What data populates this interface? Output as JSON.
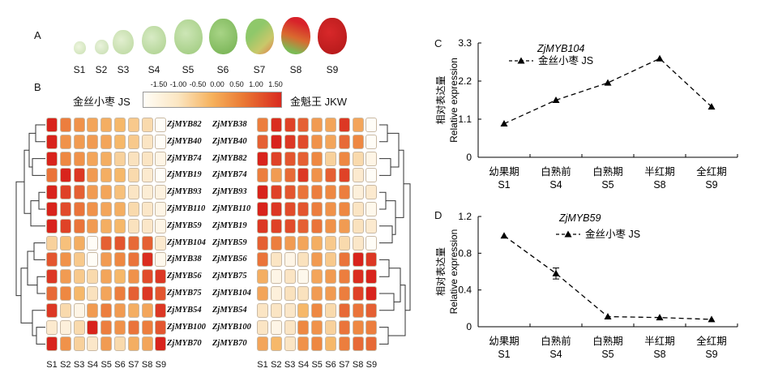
{
  "panel_a": {
    "label": "A",
    "stages": [
      "S1",
      "S2",
      "S3",
      "S4",
      "S5",
      "S6",
      "S7",
      "S8",
      "S9"
    ]
  },
  "panel_b": {
    "label": "B",
    "left_cultivar": "金丝小枣 JS",
    "right_cultivar": "金魁王 JKW",
    "scale_ticks": [
      "-1.50",
      "-1.00",
      "-0.50",
      "0.00",
      "0.50",
      "1.00",
      "1.50"
    ],
    "left_genes": [
      "ZjMYB82",
      "ZjMYB40",
      "ZjMYB74",
      "ZjMYB19",
      "ZjMYB93",
      "ZjMYB110",
      "ZjMYB59",
      "ZjMYB104",
      "ZjMYB38",
      "ZjMYB56",
      "ZjMYB75",
      "ZjMYB54",
      "ZjMYB100",
      "ZjMYB70"
    ],
    "right_genes": [
      "ZjMYB38",
      "ZjMYB40",
      "ZjMYB82",
      "ZjMYB74",
      "ZjMYB93",
      "ZjMYB110",
      "ZjMYB19",
      "ZjMYB59",
      "ZjMYB56",
      "ZjMYB75",
      "ZjMYB104",
      "ZjMYB54",
      "ZjMYB100",
      "ZjMYB70"
    ],
    "x_labels": [
      "S1",
      "S2",
      "S3",
      "S4",
      "S5",
      "S6",
      "S7",
      "S8",
      "S9"
    ],
    "left_matrix": [
      [
        1.5,
        0.6,
        0.4,
        0.2,
        0.1,
        0.0,
        -0.2,
        -0.4,
        -1.5
      ],
      [
        1.5,
        0.4,
        0.3,
        0.3,
        0.2,
        0.0,
        -0.2,
        -0.6,
        -1.5
      ],
      [
        1.5,
        0.5,
        0.4,
        0.2,
        0.1,
        -0.3,
        -0.5,
        -0.6,
        -1.2
      ],
      [
        0.7,
        1.5,
        1.3,
        0.3,
        0.1,
        0.0,
        -0.4,
        -0.8,
        -1.5
      ],
      [
        1.5,
        1.2,
        0.9,
        0.3,
        0.2,
        -0.1,
        -0.6,
        -0.9,
        -1.1
      ],
      [
        1.5,
        1.1,
        0.7,
        0.4,
        0.2,
        0.1,
        -0.4,
        -0.7,
        -1.2
      ],
      [
        1.5,
        1.2,
        0.7,
        0.3,
        0.1,
        0.0,
        -0.5,
        -0.7,
        -1.2
      ],
      [
        -0.3,
        -0.1,
        0.1,
        -1.5,
        0.9,
        1.0,
        0.8,
        0.9,
        -0.8
      ],
      [
        1.0,
        0.4,
        -0.2,
        -1.5,
        0.3,
        0.5,
        0.7,
        1.4,
        -1.3
      ],
      [
        1.3,
        0.3,
        -0.2,
        -0.4,
        0.2,
        0.0,
        0.4,
        1.1,
        1.3
      ],
      [
        0.8,
        0.5,
        0.0,
        -0.5,
        0.2,
        0.6,
        0.9,
        1.3,
        1.0
      ],
      [
        1.3,
        -0.4,
        -1.2,
        0.3,
        0.6,
        0.3,
        0.1,
        0.2,
        1.3
      ],
      [
        -0.8,
        -1.0,
        -0.4,
        1.5,
        0.6,
        0.4,
        0.7,
        0.6,
        1.0
      ],
      [
        1.5,
        0.4,
        -0.3,
        -0.7,
        0.3,
        -0.4,
        0.1,
        0.2,
        1.5
      ]
    ],
    "right_matrix": [
      [
        0.6,
        1.4,
        1.2,
        0.9,
        0.3,
        0.2,
        1.3,
        0.2,
        -1.5
      ],
      [
        0.9,
        1.5,
        1.3,
        1.1,
        0.4,
        0.2,
        0.8,
        0.5,
        -1.5
      ],
      [
        1.5,
        1.2,
        1.0,
        0.9,
        0.5,
        -0.3,
        0.5,
        -0.4,
        -1.2
      ],
      [
        0.6,
        0.3,
        0.8,
        1.3,
        0.4,
        0.9,
        1.2,
        -0.8,
        -1.5
      ],
      [
        1.5,
        1.2,
        1.0,
        0.7,
        0.6,
        0.5,
        0.6,
        -1.0,
        -0.8
      ],
      [
        1.5,
        1.3,
        1.1,
        1.0,
        0.6,
        0.4,
        0.5,
        -0.6,
        -1.3
      ],
      [
        1.3,
        1.2,
        1.1,
        0.9,
        0.7,
        0.4,
        0.3,
        -0.5,
        -0.8
      ],
      [
        0.9,
        0.6,
        0.3,
        0.2,
        0.1,
        -0.2,
        -0.4,
        -0.7,
        -1.5
      ],
      [
        0.7,
        -0.6,
        -1.2,
        -0.5,
        0.3,
        -0.2,
        0.7,
        1.5,
        1.3
      ],
      [
        0.1,
        -1.2,
        -0.6,
        -1.3,
        0.2,
        0.3,
        0.6,
        1.4,
        1.5
      ],
      [
        0.2,
        -1.0,
        -0.5,
        -0.5,
        0.3,
        0.3,
        0.6,
        1.2,
        1.5
      ],
      [
        -0.6,
        -0.6,
        -0.7,
        0.0,
        0.5,
        -0.4,
        0.8,
        0.7,
        0.9
      ],
      [
        -0.6,
        -1.2,
        -0.6,
        0.5,
        0.4,
        -0.3,
        0.7,
        0.5,
        0.6
      ],
      [
        0.2,
        0.0,
        -0.6,
        0.4,
        0.5,
        0.0,
        0.6,
        0.8,
        0.8
      ]
    ]
  },
  "chart_data": [
    {
      "type": "line",
      "panel": "C",
      "title": "ZjMYB104",
      "ylabel": "相对表达量 Relative expression",
      "categories": [
        "幼果期 S1",
        "白熟前 S4",
        "白熟期 S5",
        "半红期 S8",
        "全红期 S9"
      ],
      "ylim": [
        0,
        3.3
      ],
      "yticks": [
        "0",
        "1.1",
        "2.2",
        "3.3"
      ],
      "series": [
        {
          "name": "金丝小枣 JS",
          "values": [
            0.97,
            1.65,
            2.15,
            2.85,
            1.46
          ]
        }
      ]
    },
    {
      "type": "line",
      "panel": "D",
      "title": "ZjMYB59",
      "ylabel": "相对表达量 Relative expression",
      "categories": [
        "幼果期 S1",
        "白熟前 S4",
        "白熟期 S5",
        "半红期 S8",
        "全红期 S9"
      ],
      "ylim": [
        0,
        1.2
      ],
      "yticks": [
        "0",
        "0.4",
        "0.8",
        "1.2"
      ],
      "series": [
        {
          "name": "金丝小枣 JS",
          "values": [
            0.99,
            0.58,
            0.11,
            0.1,
            0.08
          ],
          "errors": [
            0.01,
            0.06,
            0.01,
            0.01,
            0.01
          ]
        }
      ]
    }
  ],
  "panel_c": {
    "label": "C",
    "ylabel_cn": "相对表达量",
    "ylabel_en": "Relative expression",
    "x_cn": [
      "幼果期",
      "白熟前",
      "白熟期",
      "半红期",
      "全红期"
    ],
    "x_stage": [
      "S1",
      "S4",
      "S5",
      "S8",
      "S9"
    ],
    "legend": "金丝小枣 JS",
    "title": "ZjMYB104"
  },
  "panel_d": {
    "label": "D",
    "ylabel_cn": "相对表达量",
    "ylabel_en": "Relative expression",
    "x_cn": [
      "幼果期",
      "白熟前",
      "白熟期",
      "半红期",
      "全红期"
    ],
    "x_stage": [
      "S1",
      "S4",
      "S5",
      "S8",
      "S9"
    ],
    "legend": "金丝小枣 JS",
    "title": "ZjMYB59"
  }
}
